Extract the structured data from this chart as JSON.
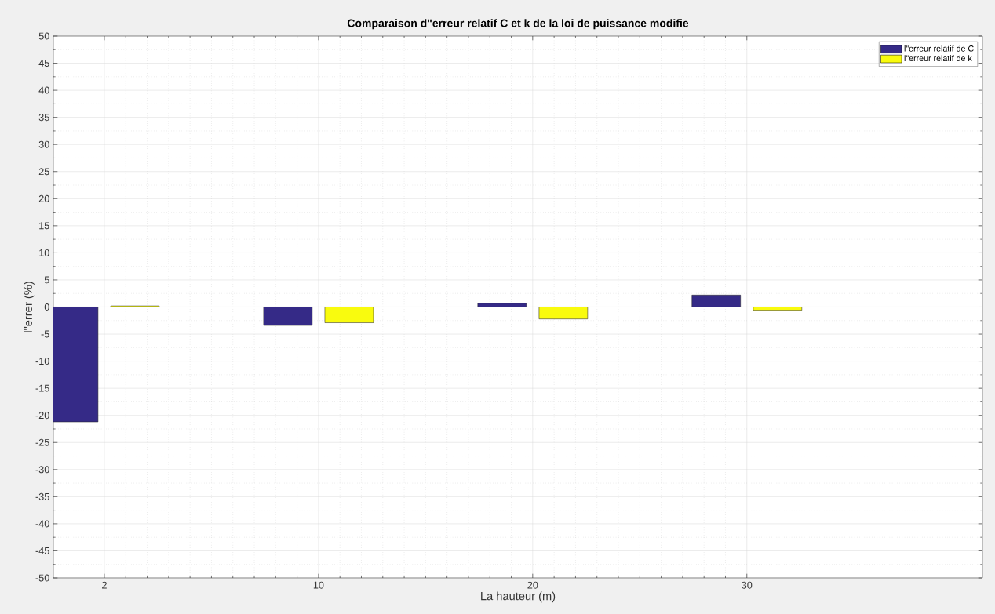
{
  "chart_data": {
    "type": "bar",
    "title": "Comparaison d\"erreur relatif C et k de la loi de puissance modifie",
    "xlabel": "La hauteur (m)",
    "ylabel": "l\"errer (%)",
    "categories": [
      "2",
      "10",
      "20",
      "30"
    ],
    "series": [
      {
        "name": "l\"erreur relatif de C",
        "color": "#352a87",
        "values": [
          -21.2,
          -3.4,
          0.7,
          2.2
        ]
      },
      {
        "name": "l\"erreur relatif de k",
        "color": "#f9fb0e",
        "values": [
          0.2,
          -2.9,
          -2.2,
          -0.6
        ]
      }
    ],
    "ylim": [
      -50,
      50
    ],
    "yticks": [
      -50,
      -45,
      -40,
      -35,
      -30,
      -25,
      -20,
      -15,
      -10,
      -5,
      0,
      5,
      10,
      15,
      20,
      25,
      30,
      35,
      40,
      45,
      50
    ],
    "grid": true,
    "legend": "top right"
  }
}
